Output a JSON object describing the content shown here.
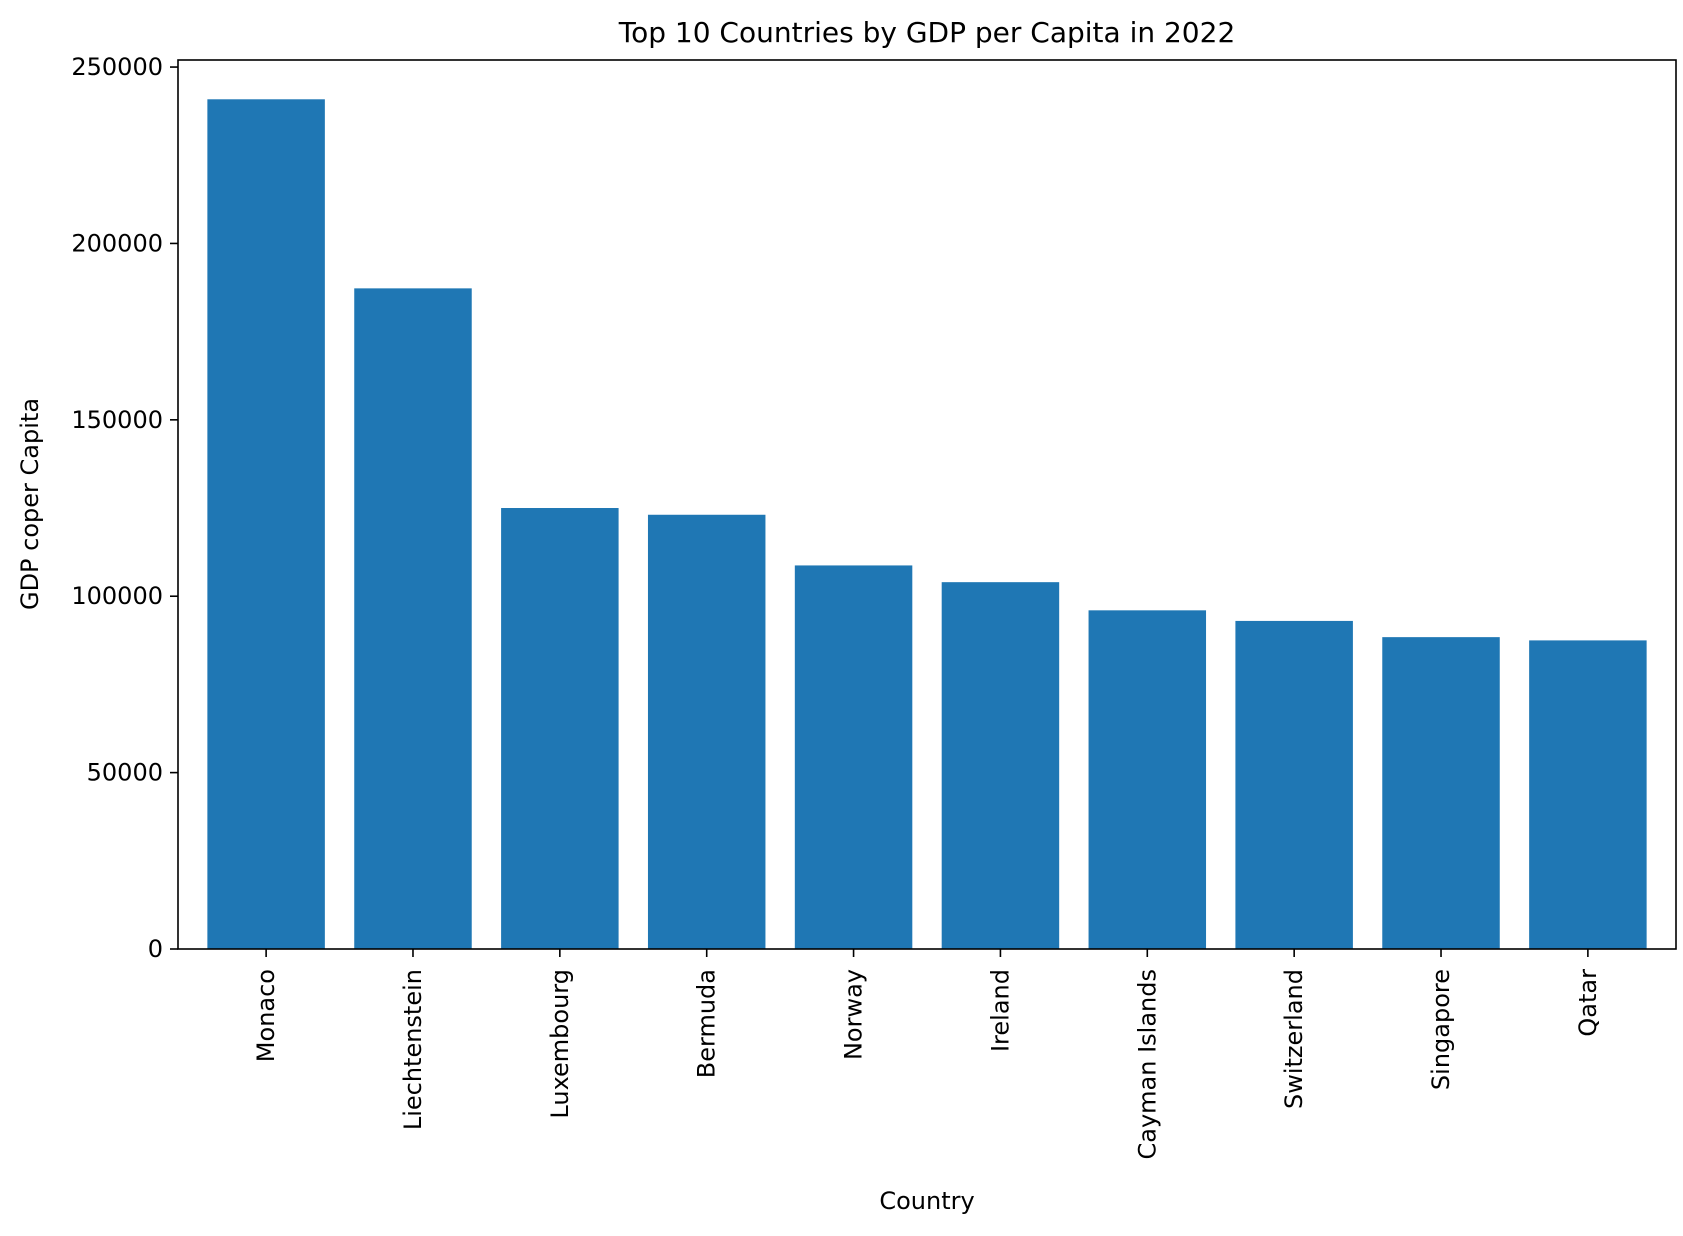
{
  "chart_data": {
    "type": "bar",
    "title": "Top 10 Countries by GDP per Capita in 2022",
    "xlabel": "Country",
    "ylabel": "GDP coper Capita",
    "categories": [
      "Monaco",
      "Liechtenstein",
      "Luxembourg",
      "Bermuda",
      "Norway",
      "Ireland",
      "Cayman Islands",
      "Switzerland",
      "Singapore",
      "Qatar"
    ],
    "values": [
      240862,
      187267,
      125006,
      123091,
      108729,
      103983,
      96000,
      93000,
      88400,
      87480
    ],
    "ylim": [
      0,
      252000
    ],
    "yticks": [
      0,
      50000,
      100000,
      150000,
      200000,
      250000
    ],
    "ytick_labels": [
      "0",
      "50000",
      "100000",
      "150000",
      "200000",
      "250000"
    ],
    "bar_color": "#1f77b4",
    "grid": false,
    "legend": "none"
  }
}
